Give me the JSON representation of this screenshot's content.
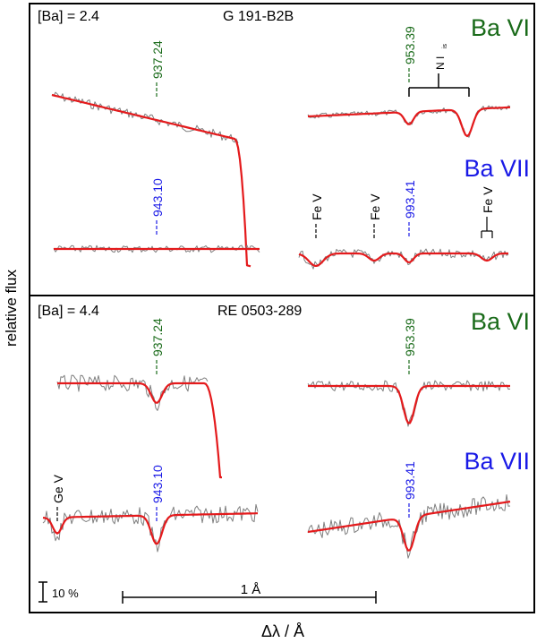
{
  "figure": {
    "ylabel": "relative flux",
    "xlabel": "Δλ / Å",
    "scale_flux_label": "10 %",
    "scale_wave_label": "1 Å",
    "colors": {
      "model": "#e41a1c",
      "observed": "#7f7f7f",
      "ba6": "#1a6b1a",
      "ba7": "#1a1ae6",
      "frame": "#000000"
    }
  },
  "chart_data": [
    {
      "type": "line",
      "panel": "G 191-B2B",
      "title": "G 191-B2B",
      "abundance_label": "[Ba] = 2.4",
      "ion_labels": [
        "Ba VI",
        "Ba VII"
      ],
      "line_ids": [
        {
          "label": "937.24",
          "ion": "Ba VI"
        },
        {
          "label": "953.39",
          "ion": "Ba VI"
        },
        {
          "label": "943.10",
          "ion": "Ba VII"
        },
        {
          "label": "993.41",
          "ion": "Ba VII"
        },
        {
          "label": "Fe V",
          "ion": "other"
        },
        {
          "label": "Fe V",
          "ion": "other"
        },
        {
          "label": "Fe V",
          "ion": "other"
        },
        {
          "label": "N I",
          "sub": "is",
          "ion": "other"
        }
      ],
      "series": [
        {
          "name": "observed",
          "segments": 4
        },
        {
          "name": "model",
          "segments": 4
        }
      ]
    },
    {
      "type": "line",
      "panel": "RE 0503-289",
      "title": "RE 0503-289",
      "abundance_label": "[Ba] = 4.4",
      "ion_labels": [
        "Ba VI",
        "Ba VII"
      ],
      "line_ids": [
        {
          "label": "937.24",
          "ion": "Ba VI"
        },
        {
          "label": "953.39",
          "ion": "Ba VI"
        },
        {
          "label": "943.10",
          "ion": "Ba VII"
        },
        {
          "label": "993.41",
          "ion": "Ba VII"
        },
        {
          "label": "Ge V",
          "ion": "other"
        }
      ],
      "series": [
        {
          "name": "observed",
          "segments": 4
        },
        {
          "name": "model",
          "segments": 4
        }
      ]
    }
  ]
}
